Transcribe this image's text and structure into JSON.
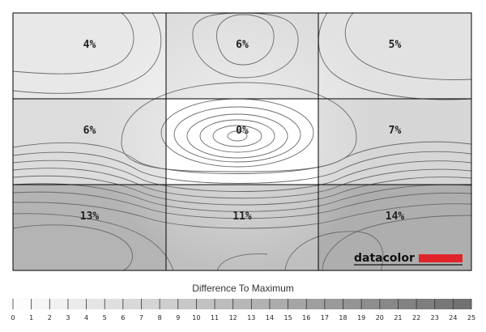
{
  "chart_data": {
    "type": "heatmap",
    "rows": 3,
    "cols": 3,
    "values": [
      [
        4,
        6,
        5
      ],
      [
        6,
        0,
        7
      ],
      [
        13,
        11,
        14
      ]
    ],
    "cell_labels": [
      [
        "4%",
        "6%",
        "5%"
      ],
      [
        "6%",
        "0%",
        "7%"
      ],
      [
        "13%",
        "11%",
        "14%"
      ]
    ],
    "legend_title": "Difference To Maximum",
    "scale_min": 0,
    "scale_max": 25,
    "scale_ticks": [
      "0",
      "1",
      "2",
      "3",
      "4",
      "5",
      "6",
      "7",
      "8",
      "9",
      "10",
      "11",
      "12",
      "13",
      "14",
      "15",
      "16",
      "17",
      "18",
      "19",
      "20",
      "21",
      "22",
      "23",
      "24",
      "25"
    ],
    "colormap": {
      "low": "#ffffff",
      "high": "#6e6e6e"
    },
    "grid_color": "#000000",
    "contour_color": "#6a6a6a"
  },
  "brand": {
    "text": "datacolor",
    "bar_color": "#e0242a"
  }
}
